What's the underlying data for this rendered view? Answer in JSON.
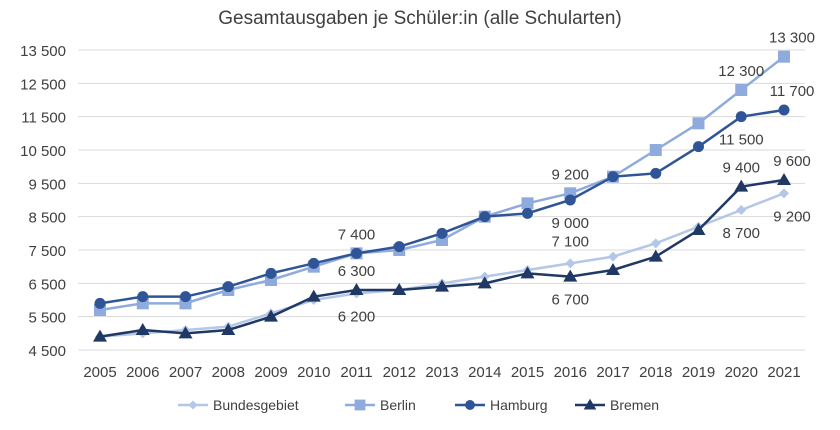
{
  "chart_data": {
    "type": "line",
    "title": "Gesamtausgaben je Schüler:in (alle Schularten)",
    "xlabel": "",
    "ylabel": "",
    "ylim": [
      4500,
      13500
    ],
    "yticks": [
      4500,
      5500,
      6500,
      7500,
      8500,
      9500,
      10500,
      11500,
      12500,
      13500
    ],
    "ytick_labels": [
      "4 500",
      "5 500",
      "6 500",
      "7 500",
      "8 500",
      "9 500",
      "10 500",
      "11 500",
      "12 500",
      "13 500"
    ],
    "grid": true,
    "legend_position": "bottom",
    "categories": [
      "2005",
      "2006",
      "2007",
      "2008",
      "2009",
      "2010",
      "2011",
      "2012",
      "2013",
      "2014",
      "2015",
      "2016",
      "2017",
      "2018",
      "2019",
      "2020",
      "2021"
    ],
    "series": [
      {
        "name": "Bundesgebiet",
        "color": "#b4c7e7",
        "marker": "diamond",
        "values": [
          4900,
          5000,
          5100,
          5200,
          5600,
          6000,
          6200,
          6300,
          6500,
          6700,
          6900,
          7100,
          7300,
          7700,
          8200,
          8700,
          9200
        ],
        "labels": [
          {
            "i": 6,
            "text": "6 200",
            "pos": "below"
          },
          {
            "i": 11,
            "text": "7 100",
            "pos": "below2"
          },
          {
            "i": 15,
            "text": "8 700",
            "pos": "below"
          },
          {
            "i": 16,
            "text": "9 200",
            "pos": "below"
          }
        ]
      },
      {
        "name": "Berlin",
        "color": "#8faadc",
        "marker": "square",
        "values": [
          5700,
          5900,
          5900,
          6300,
          6600,
          7000,
          7400,
          7500,
          7800,
          8500,
          8900,
          9200,
          9700,
          10500,
          11300,
          12300,
          13300
        ],
        "labels": [
          {
            "i": 11,
            "text": "9 200",
            "pos": "above"
          },
          {
            "i": 15,
            "text": "12 300",
            "pos": "above"
          },
          {
            "i": 16,
            "text": "13 300",
            "pos": "above"
          }
        ]
      },
      {
        "name": "Hamburg",
        "color": "#2f5597",
        "marker": "circle",
        "values": [
          5900,
          6100,
          6100,
          6400,
          6800,
          7100,
          7400,
          7600,
          8000,
          8500,
          8600,
          9000,
          9700,
          9800,
          10600,
          11500,
          11700
        ],
        "labels": [
          {
            "i": 6,
            "text": "7 400",
            "pos": "above"
          },
          {
            "i": 11,
            "text": "9 000",
            "pos": "below"
          },
          {
            "i": 15,
            "text": "11 500",
            "pos": "below"
          },
          {
            "i": 16,
            "text": "11 700",
            "pos": "above"
          }
        ]
      },
      {
        "name": "Bremen",
        "color": "#1f3864",
        "marker": "triangle",
        "values": [
          4900,
          5100,
          5000,
          5100,
          5500,
          6100,
          6300,
          6300,
          6400,
          6500,
          6800,
          6700,
          6900,
          7300,
          8100,
          9400,
          9600
        ],
        "labels": [
          {
            "i": 6,
            "text": "6 300",
            "pos": "above"
          },
          {
            "i": 11,
            "text": "6 700",
            "pos": "below"
          },
          {
            "i": 15,
            "text": "9 400",
            "pos": "above"
          },
          {
            "i": 16,
            "text": "9 600",
            "pos": "above"
          }
        ]
      }
    ]
  }
}
